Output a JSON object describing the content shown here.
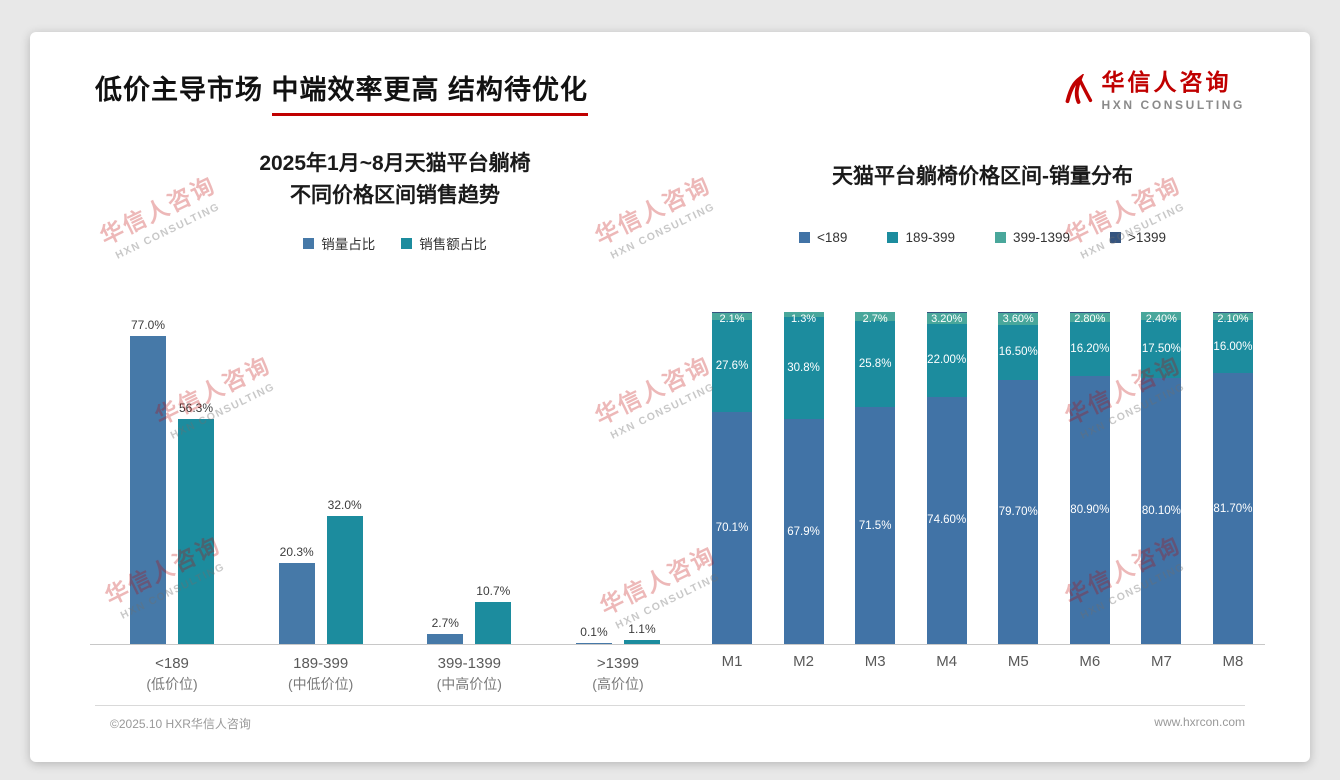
{
  "slide": {
    "title": {
      "part1": "低价主导市场 ",
      "part2": "中端效率更高 结构待优化"
    }
  },
  "brand": {
    "logo_cn": "华信人咨询",
    "logo_en": "HXN CONSULTING",
    "watermark_cn": "华信人咨询",
    "watermark_en": "HXN CONSULTING"
  },
  "footer": {
    "left": "©2025.10 HXR华信人咨询",
    "right": "www.hxrcon.com"
  },
  "colors": {
    "accent_red": "#c00000",
    "bar_blue": "#4679a8",
    "bar_teal": "#1c8c9e",
    "bar_green": "#49a79b",
    "bar_navy": "#35547f",
    "axis_gray": "#c8c8c8"
  },
  "chart_data": [
    {
      "type": "bar",
      "title": "2025年1月~8月天猫平台躺椅\n不同价格区间销售趋势",
      "title_lines": [
        "2025年1月~8月天猫平台躺椅",
        "不同价格区间销售趋势"
      ],
      "categories": [
        "<189",
        "189-399",
        "399-1399",
        ">1399"
      ],
      "category_sublabels": [
        "(低价位)",
        "(中低价位)",
        "(中高价位)",
        "(高价位)"
      ],
      "series": [
        {
          "name": "销量占比",
          "color": "#4679a8",
          "values": [
            77.0,
            20.3,
            2.7,
            0.1
          ],
          "labels": [
            "77.0%",
            "20.3%",
            "2.7%",
            "0.1%"
          ]
        },
        {
          "name": "销售额占比",
          "color": "#1c8c9e",
          "values": [
            56.3,
            32.0,
            10.7,
            1.1
          ],
          "labels": [
            "56.3%",
            "32.0%",
            "10.7%",
            "1.1%"
          ]
        }
      ],
      "xlabel": "",
      "ylabel": "",
      "ylim": [
        0,
        80
      ],
      "grid": false,
      "legend_position": "top"
    },
    {
      "type": "stacked-bar",
      "title": "天猫平台躺椅价格区间-销量分布",
      "categories": [
        "M1",
        "M2",
        "M3",
        "M4",
        "M5",
        "M6",
        "M7",
        "M8"
      ],
      "series": [
        {
          "name": "<189",
          "color": "#4173a6",
          "values": [
            70.1,
            67.9,
            71.5,
            74.6,
            79.7,
            80.9,
            80.1,
            81.7
          ],
          "labels": [
            "70.1%",
            "67.9%",
            "71.5%",
            "74.60%",
            "79.70%",
            "80.90%",
            "80.10%",
            "81.70%"
          ]
        },
        {
          "name": "189-399",
          "color": "#1c8c9e",
          "values": [
            27.6,
            30.8,
            25.8,
            22.0,
            16.5,
            16.2,
            17.5,
            16.0
          ],
          "labels": [
            "27.6%",
            "30.8%",
            "25.8%",
            "22.00%",
            "16.50%",
            "16.20%",
            "17.50%",
            "16.00%"
          ]
        },
        {
          "name": "399-1399",
          "color": "#49a79b",
          "values": [
            2.1,
            1.3,
            2.7,
            3.2,
            3.6,
            2.8,
            2.4,
            2.1
          ],
          "labels": [
            "2.1%",
            "1.3%",
            "2.7%",
            "3.20%",
            "3.60%",
            "2.80%",
            "2.40%",
            "2.10%"
          ]
        },
        {
          "name": ">1399",
          "color": "#35547f",
          "values": [
            0.2,
            0.0,
            0.0,
            0.2,
            0.2,
            0.1,
            0.0,
            0.2
          ],
          "labels": [
            "",
            "",
            "",
            "",
            "",
            "",
            "",
            ""
          ]
        }
      ],
      "xlabel": "",
      "ylabel": "",
      "ylim": [
        0,
        100
      ],
      "grid": false,
      "legend_position": "top"
    }
  ]
}
